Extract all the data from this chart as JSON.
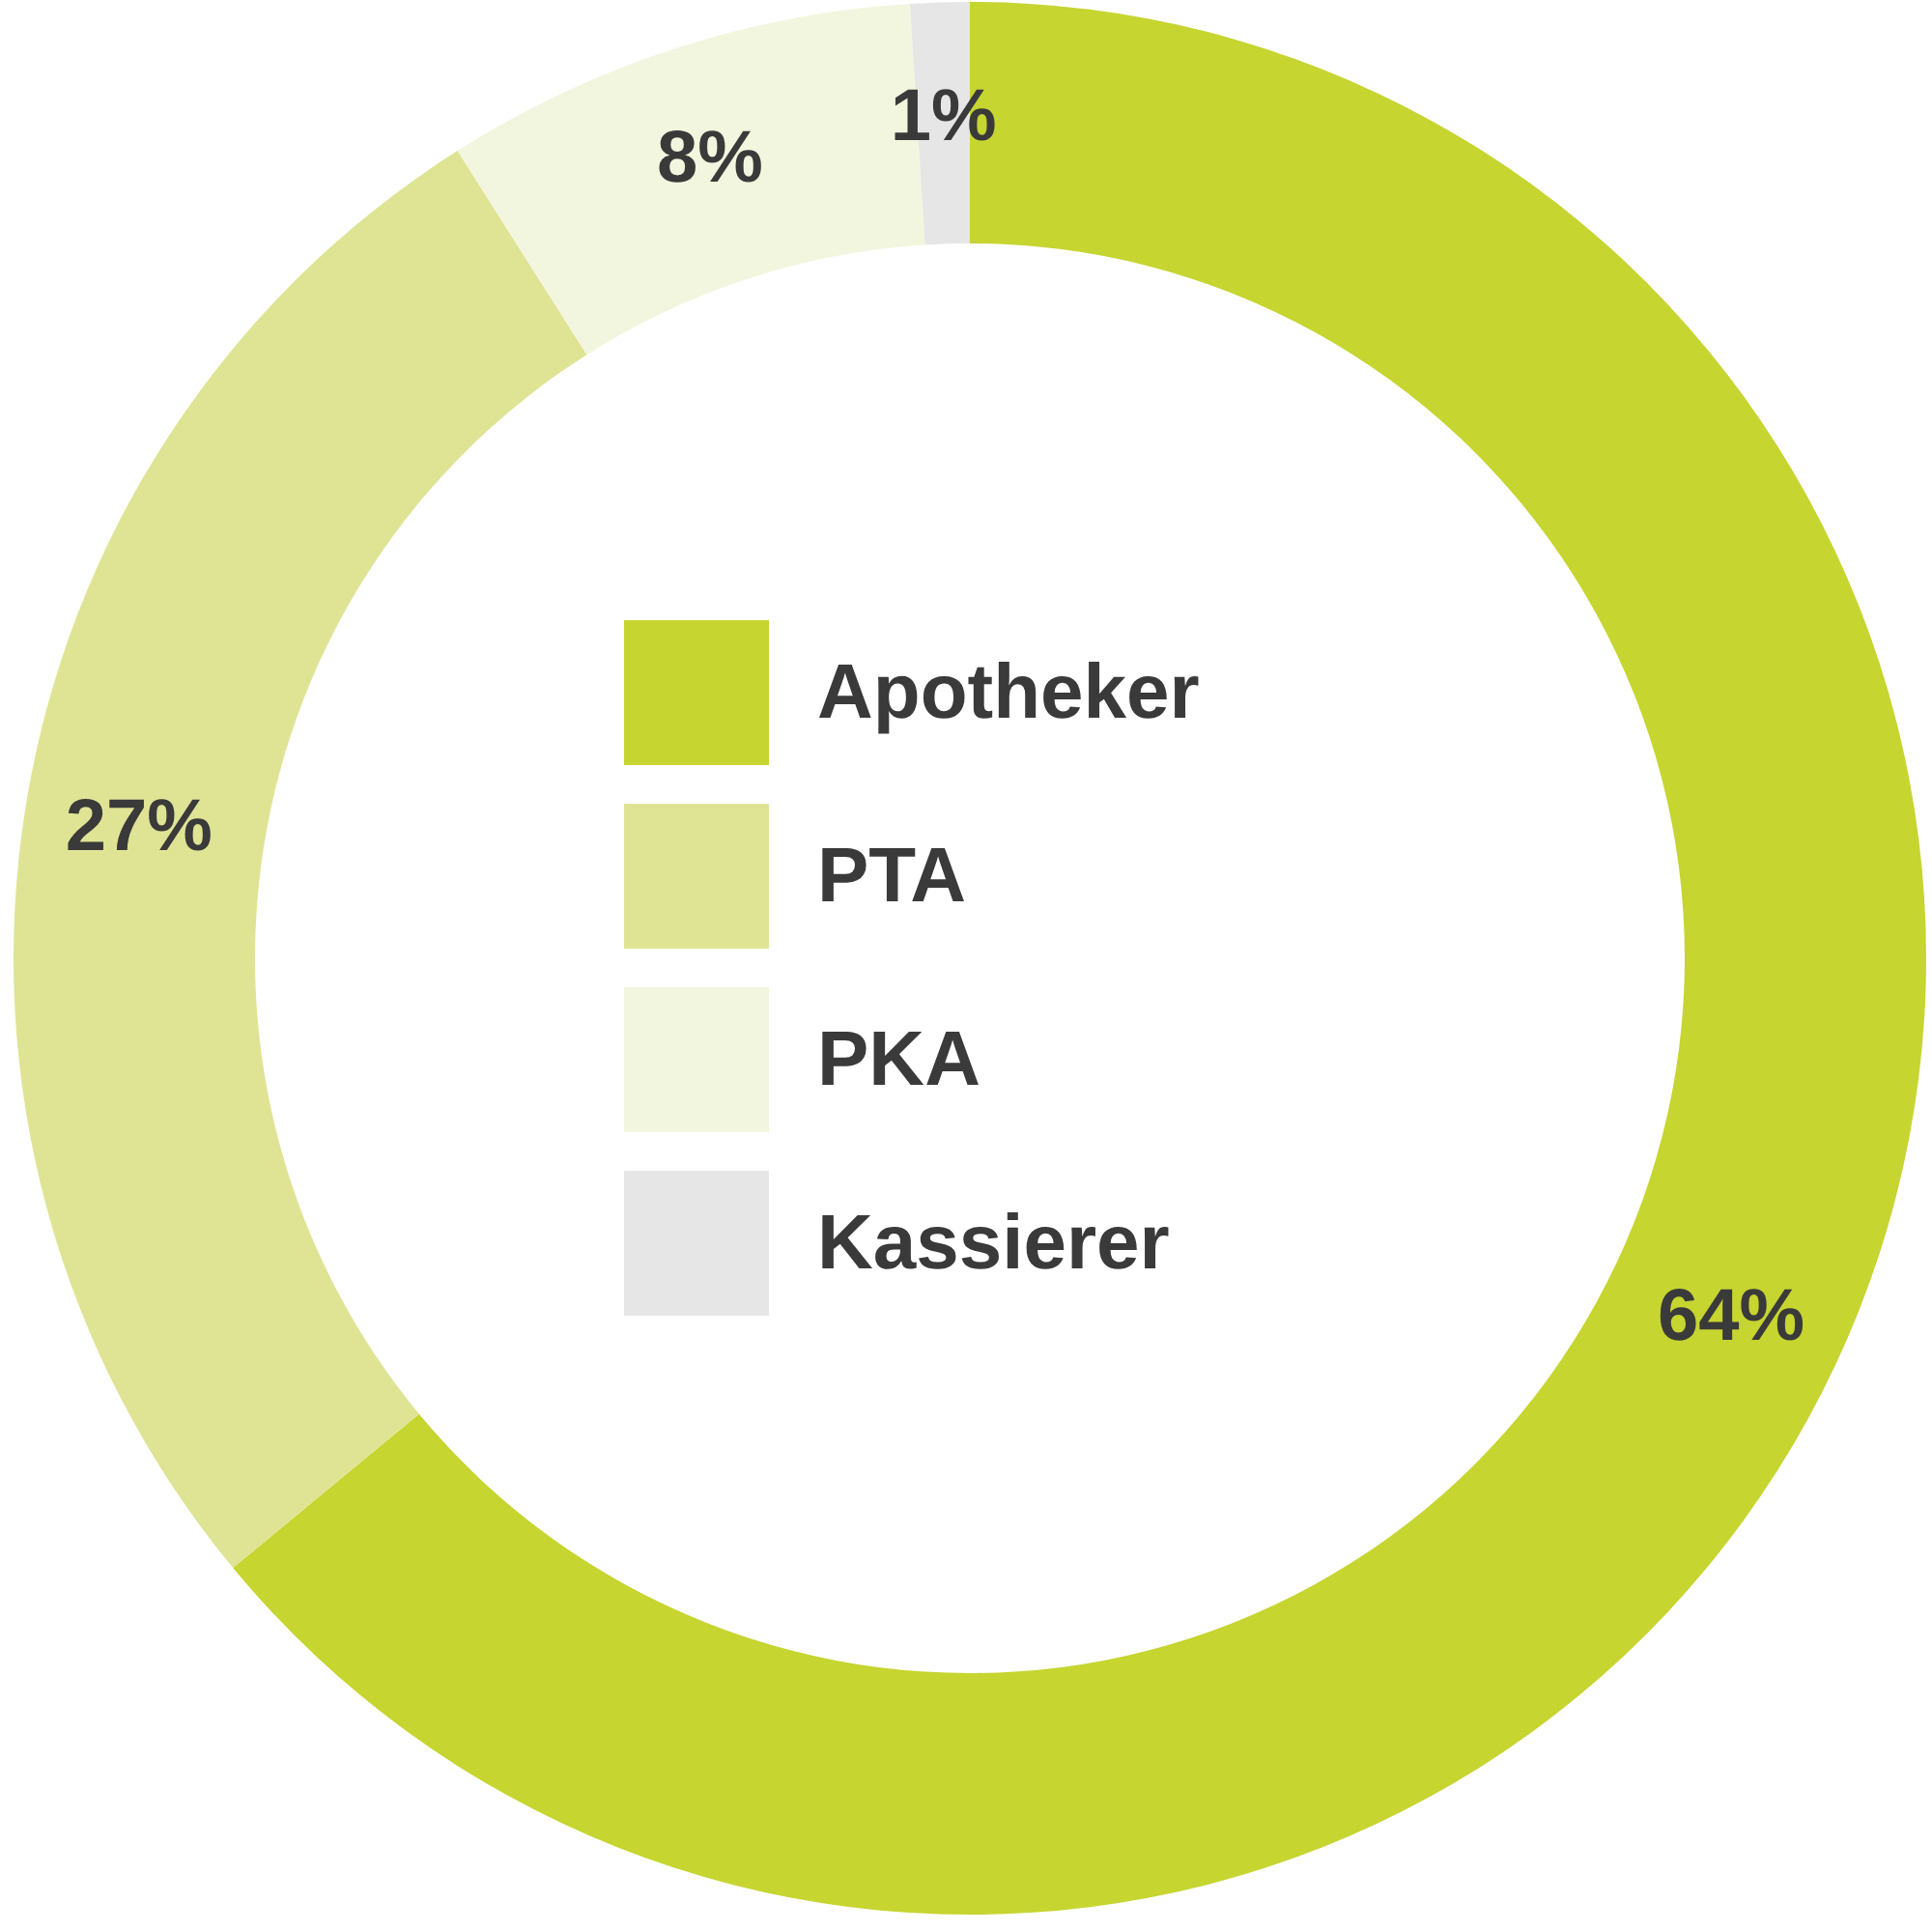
{
  "chart_data": {
    "type": "donut",
    "categories": [
      "Apotheker",
      "PTA",
      "PKA",
      "Kassierer"
    ],
    "values": [
      64,
      27,
      8,
      1
    ],
    "colors": [
      "#c6d530",
      "#dfe495",
      "#f3f6de",
      "#e6e6e6"
    ],
    "value_labels": [
      "64%",
      "27%",
      "8%",
      "1%"
    ],
    "legend": "center"
  }
}
